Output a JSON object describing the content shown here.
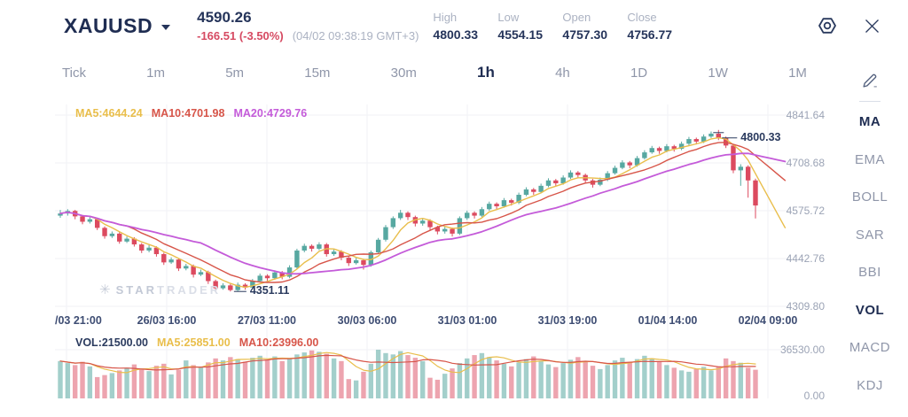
{
  "header": {
    "symbol": "XAUUSD",
    "price": "4590.26",
    "change": "-166.51 (-3.50%)",
    "timestamp": "(04/02 09:38:19 GMT+3)",
    "stats": [
      {
        "label": "High",
        "value": "4800.33"
      },
      {
        "label": "Low",
        "value": "4554.15"
      },
      {
        "label": "Open",
        "value": "4757.30"
      },
      {
        "label": "Close",
        "value": "4756.77"
      }
    ]
  },
  "timeframes": {
    "items": [
      "Tick",
      "1m",
      "5m",
      "15m",
      "30m",
      "1h",
      "4h",
      "1D",
      "1W",
      "1M"
    ],
    "active": "1h"
  },
  "indicators": {
    "items": [
      "MA",
      "EMA",
      "BOLL",
      "SAR",
      "BBI",
      "VOL",
      "MACD",
      "KDJ"
    ],
    "active": [
      "MA",
      "VOL"
    ]
  },
  "legend": {
    "ma5": "MA5:4644.24",
    "ma10": "MA10:4701.98",
    "ma20": "MA20:4729.76"
  },
  "vol_legend": {
    "vol": "VOL:21500.00",
    "ma5": "MA5:25851.00",
    "ma10": "MA10:23996.00"
  },
  "annotations": {
    "high": "4800.33",
    "low": "4351.11"
  },
  "watermark": {
    "star": "✳",
    "text_bold": "STAR",
    "text_light": "TRADER"
  },
  "colors": {
    "up": "#57A8A1",
    "down": "#DC4A5F",
    "vol_up": "rgba(87,168,161,0.55)",
    "vol_down": "rgba(220,74,95,0.5)",
    "ma5": "#E9BE4B",
    "ma10": "#D75549",
    "ma20": "#C45BD9",
    "grid": "#F0F2F6",
    "navy": "#2A3A5E",
    "muted": "#9BA3B5",
    "change_red": "#D64A62"
  },
  "chart_data": {
    "type": "candlestick+volume",
    "title": "XAUUSD 1h",
    "y_ticks": [
      "4841.64",
      "4708.68",
      "4575.72",
      "4442.76",
      "4309.80"
    ],
    "x_ticks": [
      "/03 21:00",
      "26/03 16:00",
      "27/03 11:00",
      "30/03 06:00",
      "31/03 01:00",
      "31/03 19:00",
      "01/04 14:00",
      "02/04 09:00"
    ],
    "vol_ticks": [
      "36530.00",
      "0.00"
    ],
    "high_annotation": 4800.33,
    "low_annotation": 4351.11,
    "high_index": 89,
    "low_index": 23,
    "candles": [
      [
        4562,
        4578,
        4556,
        4568
      ],
      [
        4568,
        4580,
        4562,
        4575
      ],
      [
        4575,
        4578,
        4552,
        4560
      ],
      [
        4560,
        4564,
        4538,
        4545
      ],
      [
        4545,
        4558,
        4540,
        4552
      ],
      [
        4552,
        4556,
        4522,
        4528
      ],
      [
        4528,
        4532,
        4498,
        4505
      ],
      [
        4505,
        4518,
        4500,
        4512
      ],
      [
        4512,
        4516,
        4484,
        4490
      ],
      [
        4490,
        4504,
        4486,
        4498
      ],
      [
        4498,
        4502,
        4476,
        4482
      ],
      [
        4482,
        4486,
        4458,
        4465
      ],
      [
        4465,
        4480,
        4460,
        4473
      ],
      [
        4473,
        4477,
        4448,
        4455
      ],
      [
        4455,
        4459,
        4425,
        4432
      ],
      [
        4432,
        4446,
        4428,
        4440
      ],
      [
        4440,
        4444,
        4408,
        4415
      ],
      [
        4415,
        4428,
        4410,
        4422
      ],
      [
        4422,
        4426,
        4390,
        4398
      ],
      [
        4398,
        4412,
        4394,
        4405
      ],
      [
        4405,
        4409,
        4372,
        4380
      ],
      [
        4380,
        4384,
        4352,
        4360
      ],
      [
        4360,
        4374,
        4356,
        4368
      ],
      [
        4368,
        4372,
        4351.11,
        4355
      ],
      [
        4355,
        4376,
        4352,
        4370
      ],
      [
        4370,
        4374,
        4356,
        4362
      ],
      [
        4362,
        4386,
        4358,
        4380
      ],
      [
        4380,
        4401,
        4376,
        4395
      ],
      [
        4395,
        4399,
        4380,
        4388
      ],
      [
        4388,
        4410,
        4384,
        4404
      ],
      [
        4404,
        4408,
        4385,
        4392
      ],
      [
        4392,
        4424,
        4388,
        4418
      ],
      [
        4418,
        4470,
        4414,
        4465
      ],
      [
        4465,
        4484,
        4460,
        4478
      ],
      [
        4478,
        4482,
        4462,
        4470
      ],
      [
        4470,
        4488,
        4466,
        4482
      ],
      [
        4482,
        4486,
        4448,
        4455
      ],
      [
        4455,
        4468,
        4450,
        4462
      ],
      [
        4462,
        4466,
        4438,
        4445
      ],
      [
        4445,
        4449,
        4422,
        4430
      ],
      [
        4430,
        4444,
        4426,
        4438
      ],
      [
        4438,
        4442,
        4412,
        4425
      ],
      [
        4425,
        4465,
        4420,
        4460
      ],
      [
        4460,
        4500,
        4455,
        4495
      ],
      [
        4495,
        4536,
        4490,
        4530
      ],
      [
        4530,
        4560,
        4525,
        4555
      ],
      [
        4555,
        4578,
        4550,
        4570
      ],
      [
        4570,
        4574,
        4550,
        4558
      ],
      [
        4558,
        4562,
        4532,
        4540
      ],
      [
        4540,
        4554,
        4534,
        4548
      ],
      [
        4548,
        4552,
        4522,
        4530
      ],
      [
        4530,
        4534,
        4510,
        4518
      ],
      [
        4518,
        4532,
        4512,
        4525
      ],
      [
        4525,
        4529,
        4504,
        4512
      ],
      [
        4512,
        4560,
        4508,
        4555
      ],
      [
        4555,
        4576,
        4550,
        4570
      ],
      [
        4570,
        4574,
        4554,
        4562
      ],
      [
        4562,
        4586,
        4558,
        4580
      ],
      [
        4580,
        4601,
        4576,
        4595
      ],
      [
        4595,
        4599,
        4580,
        4588
      ],
      [
        4588,
        4611,
        4584,
        4605
      ],
      [
        4605,
        4609,
        4590,
        4598
      ],
      [
        4598,
        4626,
        4594,
        4620
      ],
      [
        4620,
        4641,
        4616,
        4635
      ],
      [
        4635,
        4639,
        4620,
        4628
      ],
      [
        4628,
        4651,
        4624,
        4645
      ],
      [
        4645,
        4666,
        4641,
        4660
      ],
      [
        4660,
        4664,
        4644,
        4652
      ],
      [
        4652,
        4674,
        4648,
        4668
      ],
      [
        4668,
        4688,
        4664,
        4682
      ],
      [
        4682,
        4686,
        4667,
        4675
      ],
      [
        4675,
        4679,
        4652,
        4660
      ],
      [
        4660,
        4664,
        4640,
        4648
      ],
      [
        4648,
        4668,
        4644,
        4662
      ],
      [
        4662,
        4686,
        4658,
        4680
      ],
      [
        4680,
        4701,
        4676,
        4695
      ],
      [
        4695,
        4716,
        4691,
        4710
      ],
      [
        4710,
        4714,
        4694,
        4702
      ],
      [
        4702,
        4728,
        4698,
        4722
      ],
      [
        4722,
        4744,
        4718,
        4738
      ],
      [
        4738,
        4756,
        4734,
        4750
      ],
      [
        4750,
        4754,
        4734,
        4742
      ],
      [
        4742,
        4761,
        4738,
        4755
      ],
      [
        4755,
        4759,
        4740,
        4748
      ],
      [
        4748,
        4768,
        4744,
        4762
      ],
      [
        4762,
        4781,
        4758,
        4775
      ],
      [
        4775,
        4779,
        4760,
        4768
      ],
      [
        4768,
        4788,
        4764,
        4782
      ],
      [
        4782,
        4796,
        4778,
        4790
      ],
      [
        4790,
        4800.33,
        4772,
        4778
      ],
      [
        4778,
        4782,
        4750,
        4757
      ],
      [
        4757,
        4761,
        4680,
        4688
      ],
      [
        4688,
        4705,
        4645,
        4698
      ],
      [
        4698,
        4702,
        4612,
        4660
      ],
      [
        4660,
        4665,
        4554.15,
        4590.26
      ]
    ],
    "volumes": [
      28000,
      26500,
      25000,
      27500,
      24000,
      16000,
      17500,
      19000,
      21000,
      23000,
      25500,
      22000,
      20500,
      24500,
      26000,
      18000,
      21500,
      28500,
      25000,
      23500,
      27000,
      30000,
      28500,
      31000,
      29500,
      27500,
      30500,
      32000,
      29000,
      31500,
      28000,
      30000,
      33000,
      34500,
      36000,
      35000,
      33500,
      30000,
      28000,
      14500,
      13500,
      20000,
      26000,
      36530,
      34000,
      33000,
      35500,
      32500,
      30500,
      28000,
      15500,
      14000,
      18500,
      22500,
      26500,
      30000,
      32500,
      34000,
      31000,
      28500,
      26000,
      24000,
      27000,
      29500,
      31500,
      28000,
      25500,
      23500,
      26500,
      29000,
      31000,
      27500,
      24500,
      22000,
      25000,
      28500,
      30500,
      27000,
      29500,
      32000,
      30000,
      27500,
      25000,
      23000,
      21000,
      20000,
      22000,
      23705,
      21000,
      24000,
      30000,
      28000,
      26755,
      23000,
      21500
    ]
  }
}
